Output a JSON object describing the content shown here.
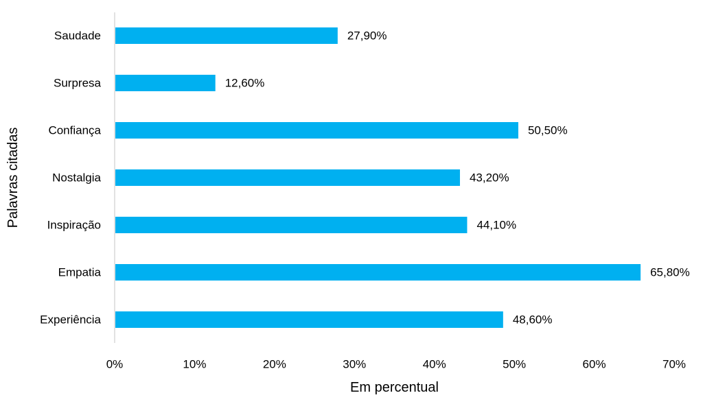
{
  "chart_data": {
    "type": "bar",
    "orientation": "horizontal",
    "title": "",
    "xlabel": "Em percentual",
    "ylabel": "Palavras citadas",
    "categories": [
      "Saudade",
      "Surpresa",
      "Confiança",
      "Nostalgia",
      "Inspiração",
      "Empatia",
      "Experiência"
    ],
    "values": [
      27.9,
      12.6,
      50.5,
      43.2,
      44.1,
      65.8,
      48.6
    ],
    "value_labels": [
      "27,90%",
      "12,60%",
      "50,50%",
      "43,20%",
      "44,10%",
      "65,80%",
      "48,60%"
    ],
    "xlim": [
      0,
      70
    ],
    "x_ticks": [
      0,
      10,
      20,
      30,
      40,
      50,
      60,
      70
    ],
    "x_tick_labels": [
      "0%",
      "10%",
      "20%",
      "30%",
      "40%",
      "50%",
      "60%",
      "70%"
    ],
    "grid": false,
    "bar_color": "#00B0F0",
    "axis_color": "#D9D9D9"
  }
}
